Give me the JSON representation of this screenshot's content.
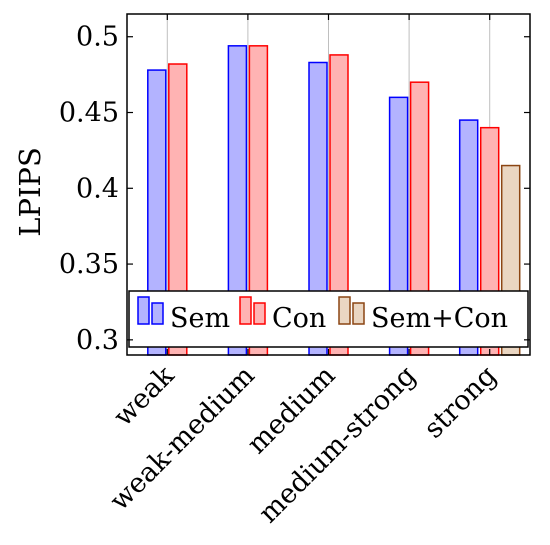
{
  "chart_data": {
    "type": "bar",
    "title": "",
    "xlabel": "",
    "ylabel": "LPIPS",
    "ylim": [
      0.29,
      0.515
    ],
    "yticks": [
      0.3,
      0.35,
      0.4,
      0.45,
      0.5
    ],
    "ytick_labels": [
      "0.3",
      "0.35",
      "0.4",
      "0.45",
      "0.5"
    ],
    "grid": "vertical",
    "legend_position": "bottom, inside plot",
    "categories": [
      "weak",
      "weak-medium",
      "medium",
      "medium-strong",
      "strong"
    ],
    "series": [
      {
        "name": "Sem",
        "values": [
          0.478,
          0.494,
          0.483,
          0.46,
          0.445
        ],
        "fill": "#b3b3ff",
        "stroke": "#0000ff"
      },
      {
        "name": "Con",
        "values": [
          0.482,
          0.494,
          0.488,
          0.47,
          0.44
        ],
        "fill": "#ffb3b3",
        "stroke": "#ff0000"
      },
      {
        "name": "Sem+Con",
        "values": [
          null,
          null,
          null,
          null,
          0.415
        ],
        "fill": "#ead6c2",
        "stroke": "#8b4513"
      }
    ]
  }
}
